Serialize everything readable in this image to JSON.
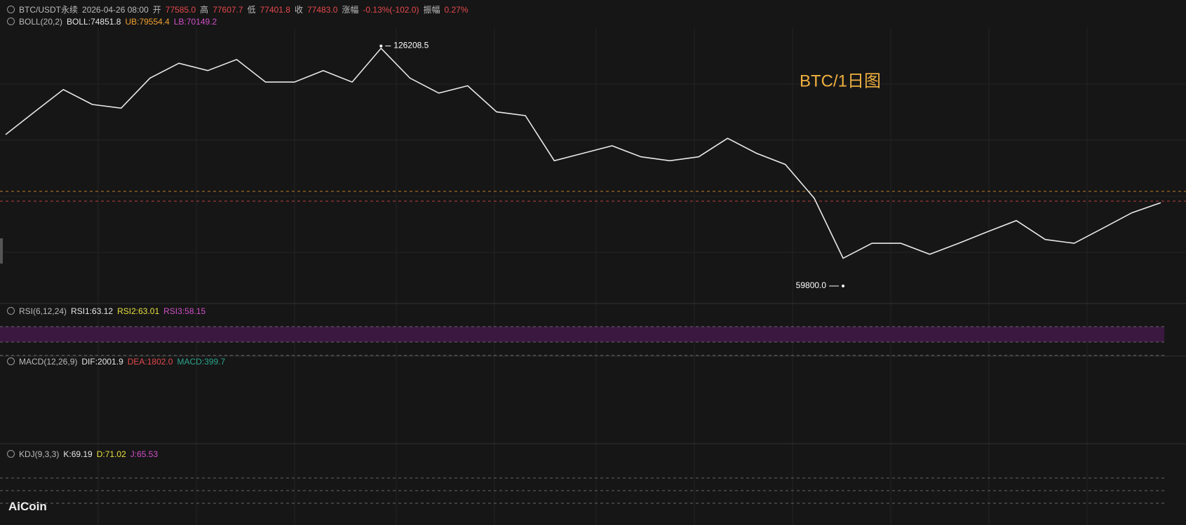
{
  "header": {
    "symbol": "BTC/USDT永续",
    "time": "2026-04-26 08:00",
    "open_label": "开",
    "open": "77585.0",
    "high_label": "高",
    "high": "77607.7",
    "low_label": "低",
    "low": "77401.8",
    "close_label": "收",
    "close": "77483.0",
    "change_label": "涨幅",
    "change": "-0.13%(-102.0)",
    "amplitude_label": "振幅",
    "amplitude": "0.27%"
  },
  "indicators": {
    "boll": {
      "name": "BOLL(20,2)",
      "mid": "BOLL:74851.8",
      "ub": "UB:79554.4",
      "lb": "LB:70149.2"
    },
    "rsi": {
      "name": "RSI(6,12,24)",
      "rsi1": "RSI1:63.12",
      "rsi2": "RSI2:63.01",
      "rsi3": "RSI3:58.15"
    },
    "macd": {
      "name": "MACD(12,26,9)",
      "dif": "DIF:2001.9",
      "dea": "DEA:1802.0",
      "macd": "MACD:399.7"
    },
    "kdj": {
      "name": "KDJ(9,3,3)",
      "k": "K:69.19",
      "d": "D:71.02",
      "j": "J:65.53"
    }
  },
  "logo": "AiCoin",
  "chart_data": {
    "type": "line",
    "title": "BTC/1日图",
    "color": "#e8e8e8",
    "log_scale": true,
    "ylim": [
      57000,
      132000
    ],
    "values": [
      95800,
      102800,
      110200,
      105200,
      104000,
      114200,
      119600,
      116900,
      121000,
      112800,
      112800,
      116900,
      112800,
      125300,
      114200,
      109000,
      111500,
      102800,
      101600,
      88300,
      90400,
      92500,
      89400,
      88300,
      89400,
      94700,
      90400,
      87300,
      78600,
      65200,
      68300,
      68300,
      66000,
      68300,
      70800,
      73300,
      69100,
      68300,
      71600,
      75100,
      77483
    ],
    "annotations": [
      {
        "index": 13,
        "value": 126208.5
      },
      {
        "index": 29,
        "value": {
          "value": 59800,
          "label": "59800.0"
        }
      }
    ]
  }
}
